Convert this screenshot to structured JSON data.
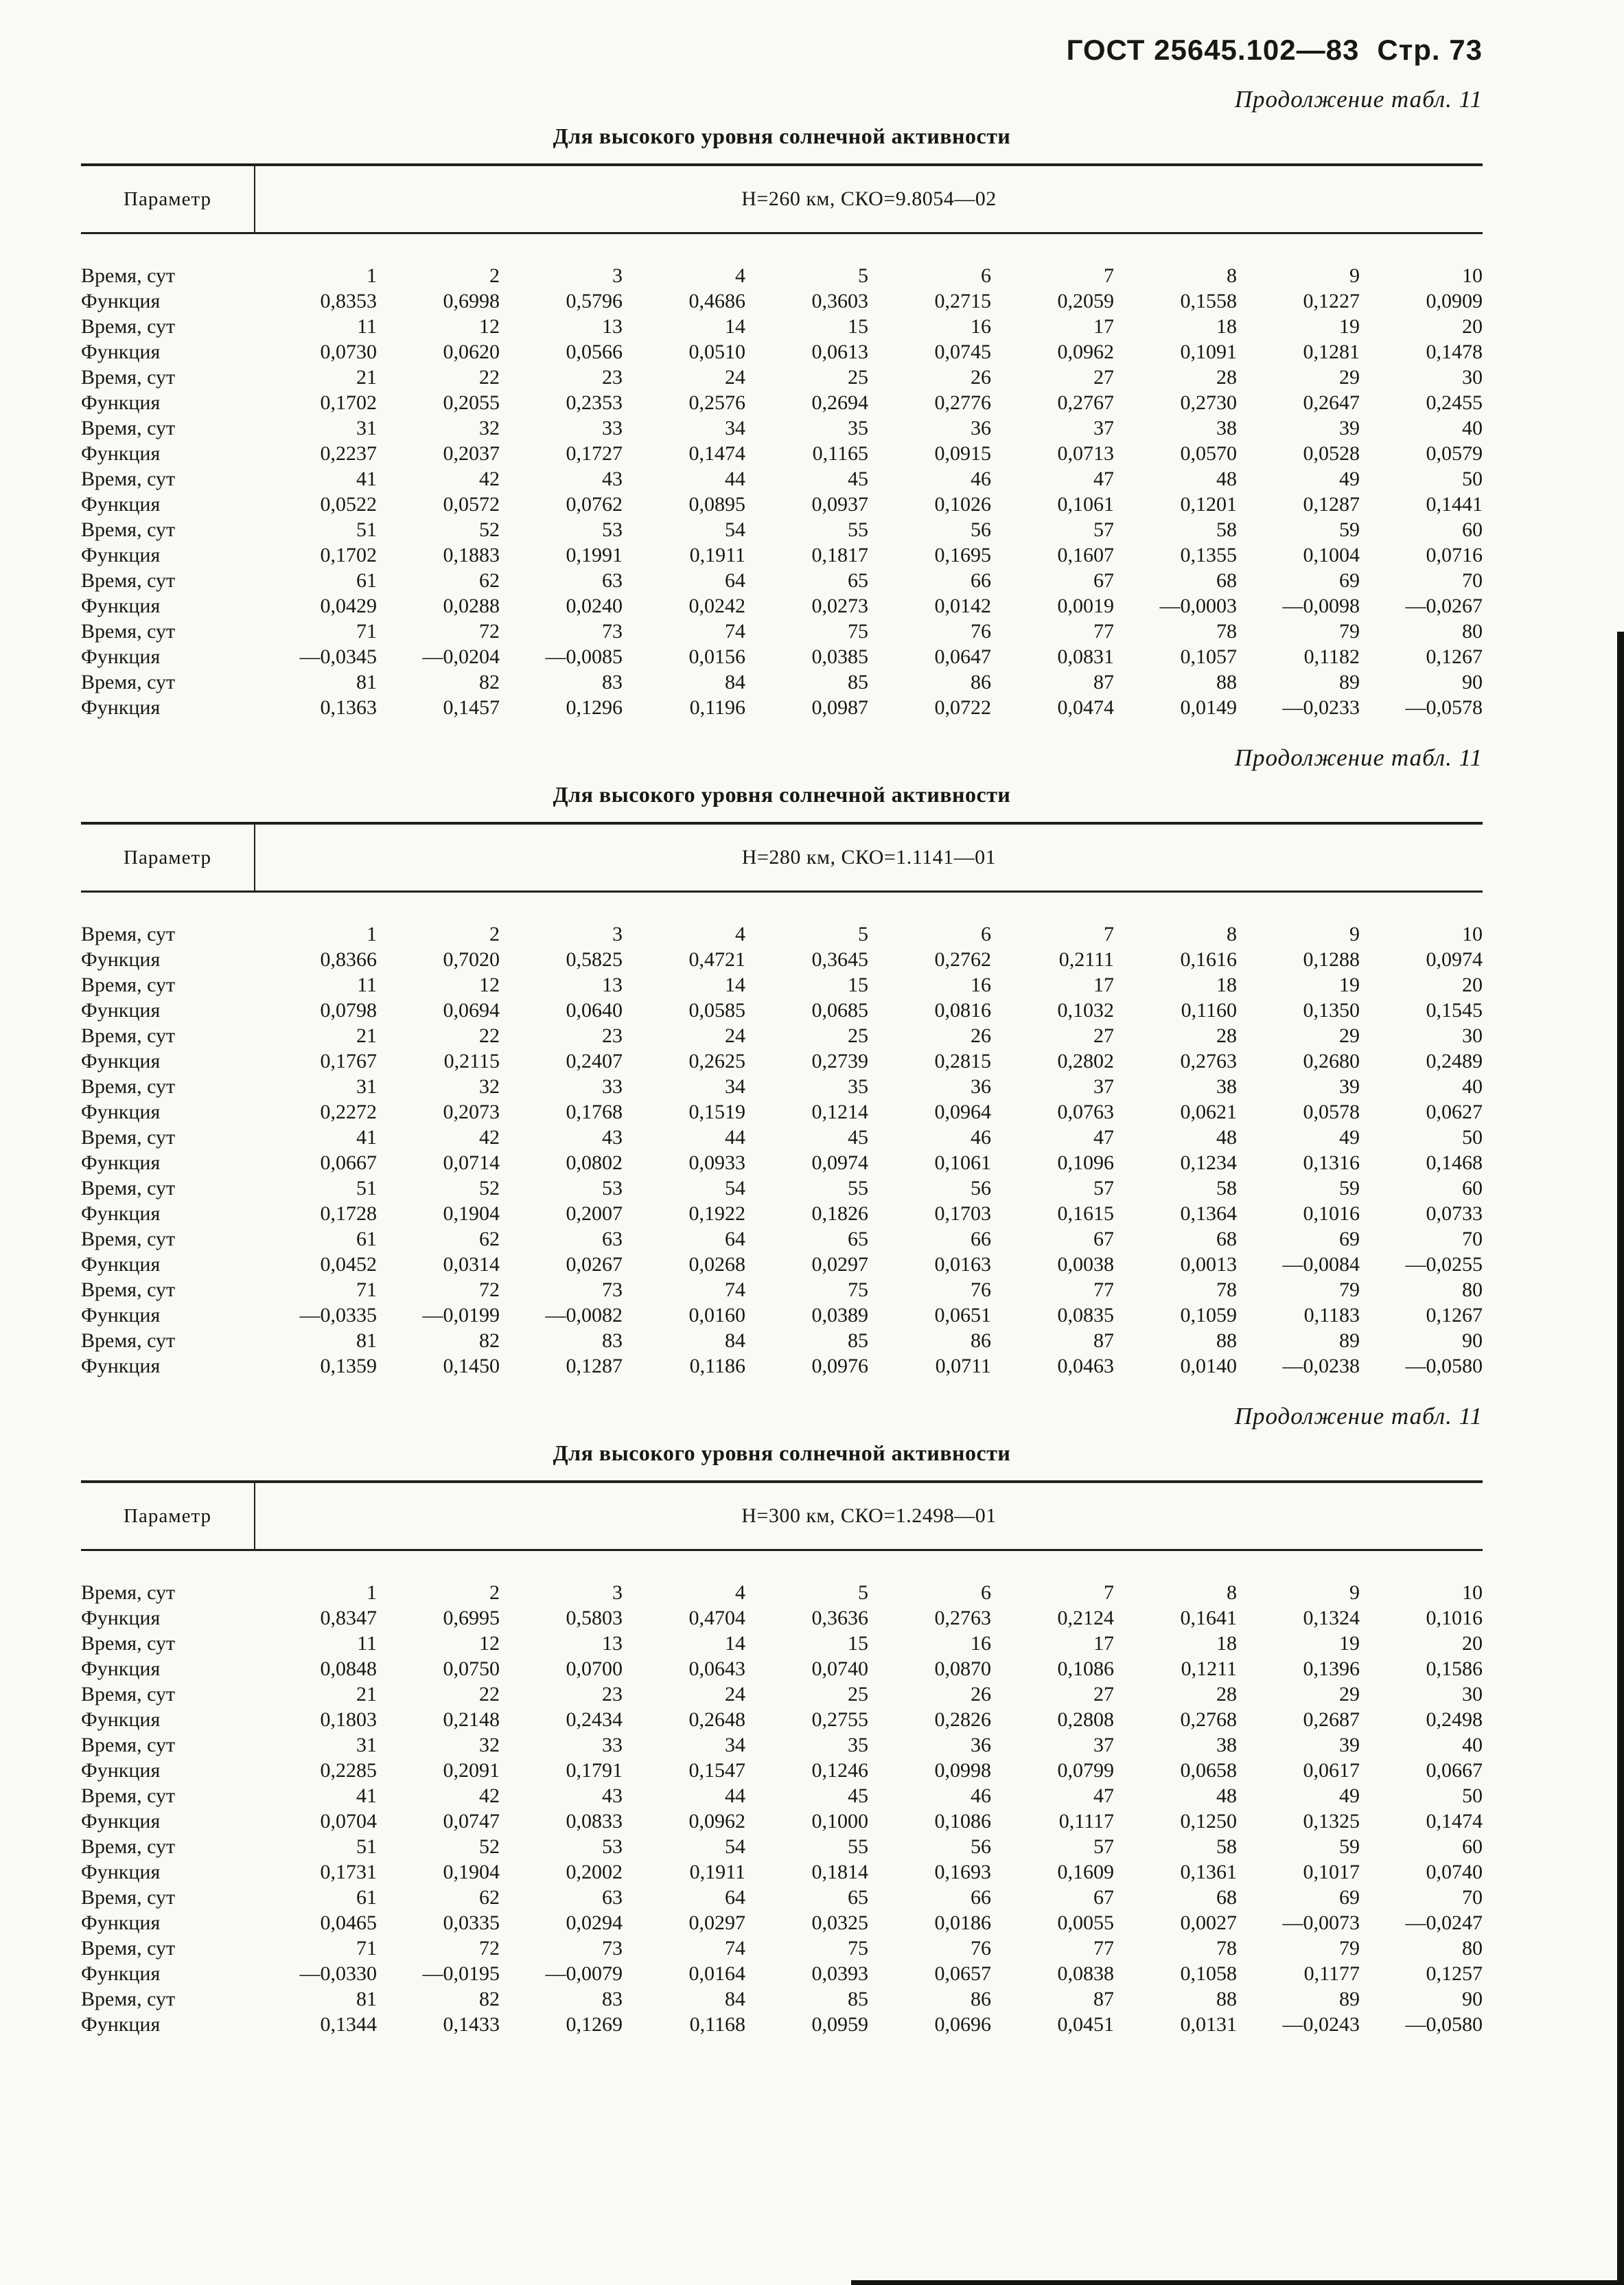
{
  "page": {
    "doc_number": "ГОСТ 25645.102—83",
    "page_label": "Стр. 73"
  },
  "tables": [
    {
      "continuation": "Продолжение табл. 11",
      "title": "Для высокого уровня солнечной активности",
      "param_label": "Параметр",
      "header": "Н=260 км, СКО=9.8054—02",
      "rows": [
        {
          "label": "Время, сут",
          "values": [
            "1",
            "2",
            "3",
            "4",
            "5",
            "6",
            "7",
            "8",
            "9",
            "10"
          ]
        },
        {
          "label": "Функция",
          "values": [
            "0,8353",
            "0,6998",
            "0,5796",
            "0,4686",
            "0,3603",
            "0,2715",
            "0,2059",
            "0,1558",
            "0,1227",
            "0,0909"
          ]
        },
        {
          "label": "Время, сут",
          "values": [
            "11",
            "12",
            "13",
            "14",
            "15",
            "16",
            "17",
            "18",
            "19",
            "20"
          ]
        },
        {
          "label": "Функция",
          "values": [
            "0,0730",
            "0,0620",
            "0,0566",
            "0,0510",
            "0,0613",
            "0,0745",
            "0,0962",
            "0,1091",
            "0,1281",
            "0,1478"
          ]
        },
        {
          "label": "Время, сут",
          "values": [
            "21",
            "22",
            "23",
            "24",
            "25",
            "26",
            "27",
            "28",
            "29",
            "30"
          ]
        },
        {
          "label": "Функция",
          "values": [
            "0,1702",
            "0,2055",
            "0,2353",
            "0,2576",
            "0,2694",
            "0,2776",
            "0,2767",
            "0,2730",
            "0,2647",
            "0,2455"
          ]
        },
        {
          "label": "Время, сут",
          "values": [
            "31",
            "32",
            "33",
            "34",
            "35",
            "36",
            "37",
            "38",
            "39",
            "40"
          ]
        },
        {
          "label": "Функция",
          "values": [
            "0,2237",
            "0,2037",
            "0,1727",
            "0,1474",
            "0,1165",
            "0,0915",
            "0,0713",
            "0,0570",
            "0,0528",
            "0,0579"
          ]
        },
        {
          "label": "Время, сут",
          "values": [
            "41",
            "42",
            "43",
            "44",
            "45",
            "46",
            "47",
            "48",
            "49",
            "50"
          ]
        },
        {
          "label": "Функция",
          "values": [
            "0,0522",
            "0,0572",
            "0,0762",
            "0,0895",
            "0,0937",
            "0,1026",
            "0,1061",
            "0,1201",
            "0,1287",
            "0,1441"
          ]
        },
        {
          "label": "Время, сут",
          "values": [
            "51",
            "52",
            "53",
            "54",
            "55",
            "56",
            "57",
            "58",
            "59",
            "60"
          ]
        },
        {
          "label": "Функция",
          "values": [
            "0,1702",
            "0,1883",
            "0,1991",
            "0,1911",
            "0,1817",
            "0,1695",
            "0,1607",
            "0,1355",
            "0,1004",
            "0,0716"
          ]
        },
        {
          "label": "Время, сут",
          "values": [
            "61",
            "62",
            "63",
            "64",
            "65",
            "66",
            "67",
            "68",
            "69",
            "70"
          ]
        },
        {
          "label": "Функция",
          "values": [
            "0,0429",
            "0,0288",
            "0,0240",
            "0,0242",
            "0,0273",
            "0,0142",
            "0,0019",
            "—0,0003",
            "—0,0098",
            "—0,0267"
          ]
        },
        {
          "label": "Время, сут",
          "values": [
            "71",
            "72",
            "73",
            "74",
            "75",
            "76",
            "77",
            "78",
            "79",
            "80"
          ]
        },
        {
          "label": "Функция",
          "values": [
            "—0,0345",
            "—0,0204",
            "—0,0085",
            "0,0156",
            "0,0385",
            "0,0647",
            "0,0831",
            "0,1057",
            "0,1182",
            "0,1267"
          ]
        },
        {
          "label": "Время, сут",
          "values": [
            "81",
            "82",
            "83",
            "84",
            "85",
            "86",
            "87",
            "88",
            "89",
            "90"
          ]
        },
        {
          "label": "Функция",
          "values": [
            "0,1363",
            "0,1457",
            "0,1296",
            "0,1196",
            "0,0987",
            "0,0722",
            "0,0474",
            "0,0149",
            "—0,0233",
            "—0,0578"
          ]
        }
      ]
    },
    {
      "continuation": "Продолжение табл. 11",
      "title": "Для высокого уровня солнечной активности",
      "param_label": "Параметр",
      "header": "Н=280 км, СКО=1.1141—01",
      "rows": [
        {
          "label": "Время, сут",
          "values": [
            "1",
            "2",
            "3",
            "4",
            "5",
            "6",
            "7",
            "8",
            "9",
            "10"
          ]
        },
        {
          "label": "Функция",
          "values": [
            "0,8366",
            "0,7020",
            "0,5825",
            "0,4721",
            "0,3645",
            "0,2762",
            "0,2111",
            "0,1616",
            "0,1288",
            "0,0974"
          ]
        },
        {
          "label": "Время, сут",
          "values": [
            "11",
            "12",
            "13",
            "14",
            "15",
            "16",
            "17",
            "18",
            "19",
            "20"
          ]
        },
        {
          "label": "Функция",
          "values": [
            "0,0798",
            "0,0694",
            "0,0640",
            "0,0585",
            "0,0685",
            "0,0816",
            "0,1032",
            "0,1160",
            "0,1350",
            "0,1545"
          ]
        },
        {
          "label": "Время, сут",
          "values": [
            "21",
            "22",
            "23",
            "24",
            "25",
            "26",
            "27",
            "28",
            "29",
            "30"
          ]
        },
        {
          "label": "Функция",
          "values": [
            "0,1767",
            "0,2115",
            "0,2407",
            "0,2625",
            "0,2739",
            "0,2815",
            "0,2802",
            "0,2763",
            "0,2680",
            "0,2489"
          ]
        },
        {
          "label": "Время, сут",
          "values": [
            "31",
            "32",
            "33",
            "34",
            "35",
            "36",
            "37",
            "38",
            "39",
            "40"
          ]
        },
        {
          "label": "Функция",
          "values": [
            "0,2272",
            "0,2073",
            "0,1768",
            "0,1519",
            "0,1214",
            "0,0964",
            "0,0763",
            "0,0621",
            "0,0578",
            "0,0627"
          ]
        },
        {
          "label": "Время, сут",
          "values": [
            "41",
            "42",
            "43",
            "44",
            "45",
            "46",
            "47",
            "48",
            "49",
            "50"
          ]
        },
        {
          "label": "Функция",
          "values": [
            "0,0667",
            "0,0714",
            "0,0802",
            "0,0933",
            "0,0974",
            "0,1061",
            "0,1096",
            "0,1234",
            "0,1316",
            "0,1468"
          ]
        },
        {
          "label": "Время, сут",
          "values": [
            "51",
            "52",
            "53",
            "54",
            "55",
            "56",
            "57",
            "58",
            "59",
            "60"
          ]
        },
        {
          "label": "Функция",
          "values": [
            "0,1728",
            "0,1904",
            "0,2007",
            "0,1922",
            "0,1826",
            "0,1703",
            "0,1615",
            "0,1364",
            "0,1016",
            "0,0733"
          ]
        },
        {
          "label": "Время, сут",
          "values": [
            "61",
            "62",
            "63",
            "64",
            "65",
            "66",
            "67",
            "68",
            "69",
            "70"
          ]
        },
        {
          "label": "Функция",
          "values": [
            "0,0452",
            "0,0314",
            "0,0267",
            "0,0268",
            "0,0297",
            "0,0163",
            "0,0038",
            "0,0013",
            "—0,0084",
            "—0,0255"
          ]
        },
        {
          "label": "Время, сут",
          "values": [
            "71",
            "72",
            "73",
            "74",
            "75",
            "76",
            "77",
            "78",
            "79",
            "80"
          ]
        },
        {
          "label": "Функция",
          "values": [
            "—0,0335",
            "—0,0199",
            "—0,0082",
            "0,0160",
            "0,0389",
            "0,0651",
            "0,0835",
            "0,1059",
            "0,1183",
            "0,1267"
          ]
        },
        {
          "label": "Время, сут",
          "values": [
            "81",
            "82",
            "83",
            "84",
            "85",
            "86",
            "87",
            "88",
            "89",
            "90"
          ]
        },
        {
          "label": "Функция",
          "values": [
            "0,1359",
            "0,1450",
            "0,1287",
            "0,1186",
            "0,0976",
            "0,0711",
            "0,0463",
            "0,0140",
            "—0,0238",
            "—0,0580"
          ]
        }
      ]
    },
    {
      "continuation": "Продолжение табл. 11",
      "title": "Для высокого уровня солнечной активности",
      "param_label": "Параметр",
      "header": "Н=300 км, СКО=1.2498—01",
      "rows": [
        {
          "label": "Время, сут",
          "values": [
            "1",
            "2",
            "3",
            "4",
            "5",
            "6",
            "7",
            "8",
            "9",
            "10"
          ]
        },
        {
          "label": "Функция",
          "values": [
            "0,8347",
            "0,6995",
            "0,5803",
            "0,4704",
            "0,3636",
            "0,2763",
            "0,2124",
            "0,1641",
            "0,1324",
            "0,1016"
          ]
        },
        {
          "label": "Время, сут",
          "values": [
            "11",
            "12",
            "13",
            "14",
            "15",
            "16",
            "17",
            "18",
            "19",
            "20"
          ]
        },
        {
          "label": "Функция",
          "values": [
            "0,0848",
            "0,0750",
            "0,0700",
            "0,0643",
            "0,0740",
            "0,0870",
            "0,1086",
            "0,1211",
            "0,1396",
            "0,1586"
          ]
        },
        {
          "label": "Время, сут",
          "values": [
            "21",
            "22",
            "23",
            "24",
            "25",
            "26",
            "27",
            "28",
            "29",
            "30"
          ]
        },
        {
          "label": "Функция",
          "values": [
            "0,1803",
            "0,2148",
            "0,2434",
            "0,2648",
            "0,2755",
            "0,2826",
            "0,2808",
            "0,2768",
            "0,2687",
            "0,2498"
          ]
        },
        {
          "label": "Время, сут",
          "values": [
            "31",
            "32",
            "33",
            "34",
            "35",
            "36",
            "37",
            "38",
            "39",
            "40"
          ]
        },
        {
          "label": "Функция",
          "values": [
            "0,2285",
            "0,2091",
            "0,1791",
            "0,1547",
            "0,1246",
            "0,0998",
            "0,0799",
            "0,0658",
            "0,0617",
            "0,0667"
          ]
        },
        {
          "label": "Время, сут",
          "values": [
            "41",
            "42",
            "43",
            "44",
            "45",
            "46",
            "47",
            "48",
            "49",
            "50"
          ]
        },
        {
          "label": "Функция",
          "values": [
            "0,0704",
            "0,0747",
            "0,0833",
            "0,0962",
            "0,1000",
            "0,1086",
            "0,1117",
            "0,1250",
            "0,1325",
            "0,1474"
          ]
        },
        {
          "label": "Время, сут",
          "values": [
            "51",
            "52",
            "53",
            "54",
            "55",
            "56",
            "57",
            "58",
            "59",
            "60"
          ]
        },
        {
          "label": "Функция",
          "values": [
            "0,1731",
            "0,1904",
            "0,2002",
            "0,1911",
            "0,1814",
            "0,1693",
            "0,1609",
            "0,1361",
            "0,1017",
            "0,0740"
          ]
        },
        {
          "label": "Время, сут",
          "values": [
            "61",
            "62",
            "63",
            "64",
            "65",
            "66",
            "67",
            "68",
            "69",
            "70"
          ]
        },
        {
          "label": "Функция",
          "values": [
            "0,0465",
            "0,0335",
            "0,0294",
            "0,0297",
            "0,0325",
            "0,0186",
            "0,0055",
            "0,0027",
            "—0,0073",
            "—0,0247"
          ]
        },
        {
          "label": "Время, сут",
          "values": [
            "71",
            "72",
            "73",
            "74",
            "75",
            "76",
            "77",
            "78",
            "79",
            "80"
          ]
        },
        {
          "label": "Функция",
          "values": [
            "—0,0330",
            "—0,0195",
            "—0,0079",
            "0,0164",
            "0,0393",
            "0,0657",
            "0,0838",
            "0,1058",
            "0,1177",
            "0,1257"
          ]
        },
        {
          "label": "Время, сут",
          "values": [
            "81",
            "82",
            "83",
            "84",
            "85",
            "86",
            "87",
            "88",
            "89",
            "90"
          ]
        },
        {
          "label": "Функция",
          "values": [
            "0,1344",
            "0,1433",
            "0,1269",
            "0,1168",
            "0,0959",
            "0,0696",
            "0,0451",
            "0,0131",
            "—0,0243",
            "—0,0580"
          ]
        }
      ]
    }
  ]
}
